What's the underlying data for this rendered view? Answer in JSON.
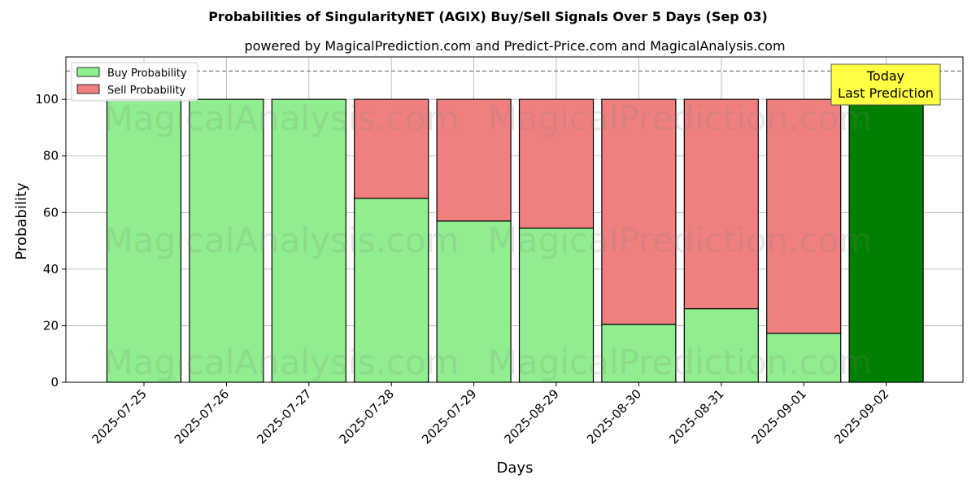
{
  "chart_data": {
    "type": "bar",
    "stacked": true,
    "title": "Probabilities of SingularityNET (AGIX) Buy/Sell Signals Over 5 Days (Sep 03)",
    "subtitle": "powered by MagicalPrediction.com and Predict-Price.com and MagicalAnalysis.com",
    "xlabel": "Days",
    "ylabel": "Probability",
    "ylim": [
      0,
      115
    ],
    "yticks": [
      0,
      20,
      40,
      60,
      80,
      100
    ],
    "reference_line": 110,
    "grid": true,
    "legend_position": "top-left",
    "categories": [
      "2025-07-25",
      "2025-07-26",
      "2025-07-27",
      "2025-07-28",
      "2025-07-29",
      "2025-08-29",
      "2025-08-30",
      "2025-08-31",
      "2025-09-01",
      "2025-09-02"
    ],
    "series": [
      {
        "name": "Buy Probability",
        "color": "#90ee90",
        "values": [
          100,
          100,
          100,
          65,
          57,
          54.5,
          20.5,
          26,
          17.3,
          100
        ]
      },
      {
        "name": "Sell Probability",
        "color": "#f08080",
        "values": [
          0,
          0,
          0,
          35,
          43,
          45.5,
          79.5,
          74,
          82.7,
          0
        ]
      }
    ],
    "highlight": {
      "category": "2025-09-02",
      "color": "#008000"
    },
    "annotation": {
      "line1": "Today",
      "line2": "Last Prediction",
      "color": "#ffff44"
    },
    "watermarks": [
      "MagicalAnalysis.com",
      "MagicalPrediction.com"
    ]
  }
}
